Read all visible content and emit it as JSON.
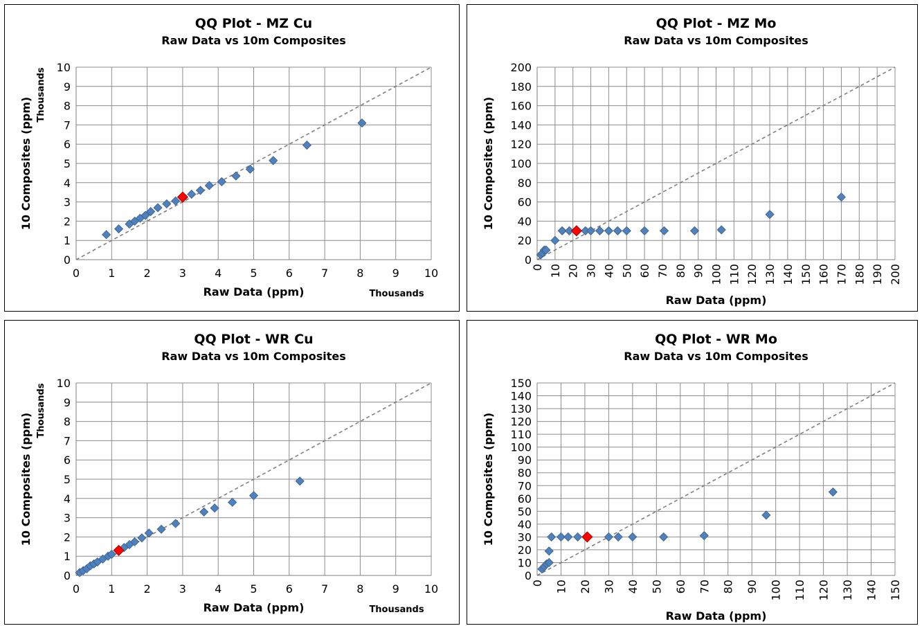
{
  "chart_data": [
    {
      "type": "scatter",
      "title": "QQ Plot - MZ Cu",
      "subtitle": "Raw Data vs 10m Composites",
      "xlabel": "Raw Data (ppm)",
      "ylabel": "10 Composites (ppm)",
      "x_units": "Thousands",
      "y_units": "Thousands",
      "xlim": [
        0,
        10
      ],
      "ylim": [
        0,
        10
      ],
      "xticks": [
        "0",
        "1",
        "2",
        "3",
        "4",
        "5",
        "6",
        "7",
        "8",
        "9",
        "10"
      ],
      "yticks": [
        "0",
        "1",
        "2",
        "3",
        "4",
        "5",
        "6",
        "7",
        "8",
        "9",
        "10"
      ],
      "x_ticks_rotated": false,
      "grid": true,
      "reference_line": "y = x (dashed)",
      "marker_color": "#4f81bd",
      "highlight_color": "#ff0000",
      "points": [
        {
          "x": 0.85,
          "y": 1.3
        },
        {
          "x": 1.2,
          "y": 1.6
        },
        {
          "x": 1.5,
          "y": 1.85
        },
        {
          "x": 1.65,
          "y": 2.0
        },
        {
          "x": 1.8,
          "y": 2.15
        },
        {
          "x": 1.95,
          "y": 2.3
        },
        {
          "x": 2.1,
          "y": 2.5
        },
        {
          "x": 2.3,
          "y": 2.7
        },
        {
          "x": 2.55,
          "y": 2.9
        },
        {
          "x": 2.8,
          "y": 3.05
        },
        {
          "x": 3.25,
          "y": 3.4
        },
        {
          "x": 3.5,
          "y": 3.6
        },
        {
          "x": 3.75,
          "y": 3.85
        },
        {
          "x": 4.1,
          "y": 4.05
        },
        {
          "x": 4.5,
          "y": 4.35
        },
        {
          "x": 4.9,
          "y": 4.7
        },
        {
          "x": 5.55,
          "y": 5.15
        },
        {
          "x": 6.5,
          "y": 5.95
        },
        {
          "x": 8.05,
          "y": 7.1
        }
      ],
      "highlight": {
        "x": 3.0,
        "y": 3.25
      }
    },
    {
      "type": "scatter",
      "title": "QQ Plot - MZ Mo",
      "subtitle": "Raw Data vs 10m Composites",
      "xlabel": "Raw Data (ppm)",
      "ylabel": "10 Composites (ppm)",
      "x_units": "",
      "y_units": "",
      "xlim": [
        0,
        200
      ],
      "ylim": [
        0,
        200
      ],
      "xticks": [
        "0",
        "10",
        "20",
        "30",
        "40",
        "50",
        "60",
        "70",
        "80",
        "90",
        "100",
        "110",
        "120",
        "130",
        "140",
        "150",
        "160",
        "170",
        "180",
        "190",
        "200"
      ],
      "yticks": [
        "0",
        "20",
        "40",
        "60",
        "80",
        "100",
        "120",
        "140",
        "160",
        "180",
        "200"
      ],
      "x_ticks_rotated": true,
      "grid": true,
      "reference_line": "y = x (dashed)",
      "marker_color": "#4f81bd",
      "highlight_color": "#ff0000",
      "points": [
        {
          "x": 2,
          "y": 5
        },
        {
          "x": 3,
          "y": 7
        },
        {
          "x": 4,
          "y": 10
        },
        {
          "x": 5,
          "y": 10
        },
        {
          "x": 10,
          "y": 20
        },
        {
          "x": 14,
          "y": 30
        },
        {
          "x": 18,
          "y": 30
        },
        {
          "x": 27,
          "y": 30
        },
        {
          "x": 30,
          "y": 30
        },
        {
          "x": 35,
          "y": 30
        },
        {
          "x": 40,
          "y": 30
        },
        {
          "x": 45,
          "y": 30
        },
        {
          "x": 50,
          "y": 30
        },
        {
          "x": 60,
          "y": 30
        },
        {
          "x": 71,
          "y": 30
        },
        {
          "x": 88,
          "y": 30
        },
        {
          "x": 103,
          "y": 31
        },
        {
          "x": 130,
          "y": 47
        },
        {
          "x": 170,
          "y": 65
        }
      ],
      "highlight": {
        "x": 22,
        "y": 30
      }
    },
    {
      "type": "scatter",
      "title": "QQ Plot - WR Cu",
      "subtitle": "Raw Data vs 10m Composites",
      "xlabel": "Raw Data (ppm)",
      "ylabel": "10 Composites (ppm)",
      "x_units": "Thousands",
      "y_units": "Thousands",
      "xlim": [
        0,
        10
      ],
      "ylim": [
        0,
        10
      ],
      "xticks": [
        "0",
        "1",
        "2",
        "3",
        "4",
        "5",
        "6",
        "7",
        "8",
        "9",
        "10"
      ],
      "yticks": [
        "0",
        "1",
        "2",
        "3",
        "4",
        "5",
        "6",
        "7",
        "8",
        "9",
        "10"
      ],
      "x_ticks_rotated": false,
      "grid": true,
      "reference_line": "y = x (dashed)",
      "marker_color": "#4f81bd",
      "highlight_color": "#ff0000",
      "points": [
        {
          "x": 0.1,
          "y": 0.15
        },
        {
          "x": 0.2,
          "y": 0.25
        },
        {
          "x": 0.3,
          "y": 0.35
        },
        {
          "x": 0.4,
          "y": 0.5
        },
        {
          "x": 0.5,
          "y": 0.6
        },
        {
          "x": 0.6,
          "y": 0.7
        },
        {
          "x": 0.75,
          "y": 0.85
        },
        {
          "x": 0.9,
          "y": 1.0
        },
        {
          "x": 1.0,
          "y": 1.1
        },
        {
          "x": 1.35,
          "y": 1.45
        },
        {
          "x": 1.5,
          "y": 1.6
        },
        {
          "x": 1.65,
          "y": 1.75
        },
        {
          "x": 1.85,
          "y": 1.95
        },
        {
          "x": 2.05,
          "y": 2.2
        },
        {
          "x": 2.4,
          "y": 2.4
        },
        {
          "x": 2.8,
          "y": 2.7
        },
        {
          "x": 3.6,
          "y": 3.3
        },
        {
          "x": 3.9,
          "y": 3.5
        },
        {
          "x": 4.4,
          "y": 3.8
        },
        {
          "x": 5.0,
          "y": 4.15
        },
        {
          "x": 6.3,
          "y": 4.9
        }
      ],
      "highlight": {
        "x": 1.2,
        "y": 1.3
      }
    },
    {
      "type": "scatter",
      "title": "QQ Plot - WR Mo",
      "subtitle": "Raw Data vs 10m Composites",
      "xlabel": "Raw Data (ppm)",
      "ylabel": "10 Composites (ppm)",
      "x_units": "",
      "y_units": "",
      "xlim": [
        0,
        150
      ],
      "ylim": [
        0,
        150
      ],
      "xticks": [
        "0",
        "10",
        "20",
        "30",
        "40",
        "50",
        "60",
        "70",
        "80",
        "90",
        "100",
        "110",
        "120",
        "130",
        "140",
        "150"
      ],
      "yticks": [
        "0",
        "10",
        "20",
        "30",
        "40",
        "50",
        "60",
        "70",
        "80",
        "90",
        "100",
        "110",
        "120",
        "130",
        "140",
        "150"
      ],
      "x_ticks_rotated": true,
      "grid": true,
      "reference_line": "y = x (dashed)",
      "marker_color": "#4f81bd",
      "highlight_color": "#ff0000",
      "points": [
        {
          "x": 2,
          "y": 5
        },
        {
          "x": 3,
          "y": 7
        },
        {
          "x": 4,
          "y": 9
        },
        {
          "x": 5,
          "y": 10
        },
        {
          "x": 5,
          "y": 19
        },
        {
          "x": 6,
          "y": 30
        },
        {
          "x": 10,
          "y": 30
        },
        {
          "x": 13,
          "y": 30
        },
        {
          "x": 17,
          "y": 30
        },
        {
          "x": 30,
          "y": 30
        },
        {
          "x": 34,
          "y": 30
        },
        {
          "x": 40,
          "y": 30
        },
        {
          "x": 53,
          "y": 30
        },
        {
          "x": 70,
          "y": 31
        },
        {
          "x": 96,
          "y": 47
        },
        {
          "x": 124,
          "y": 65
        }
      ],
      "highlight": {
        "x": 21,
        "y": 30
      }
    }
  ]
}
